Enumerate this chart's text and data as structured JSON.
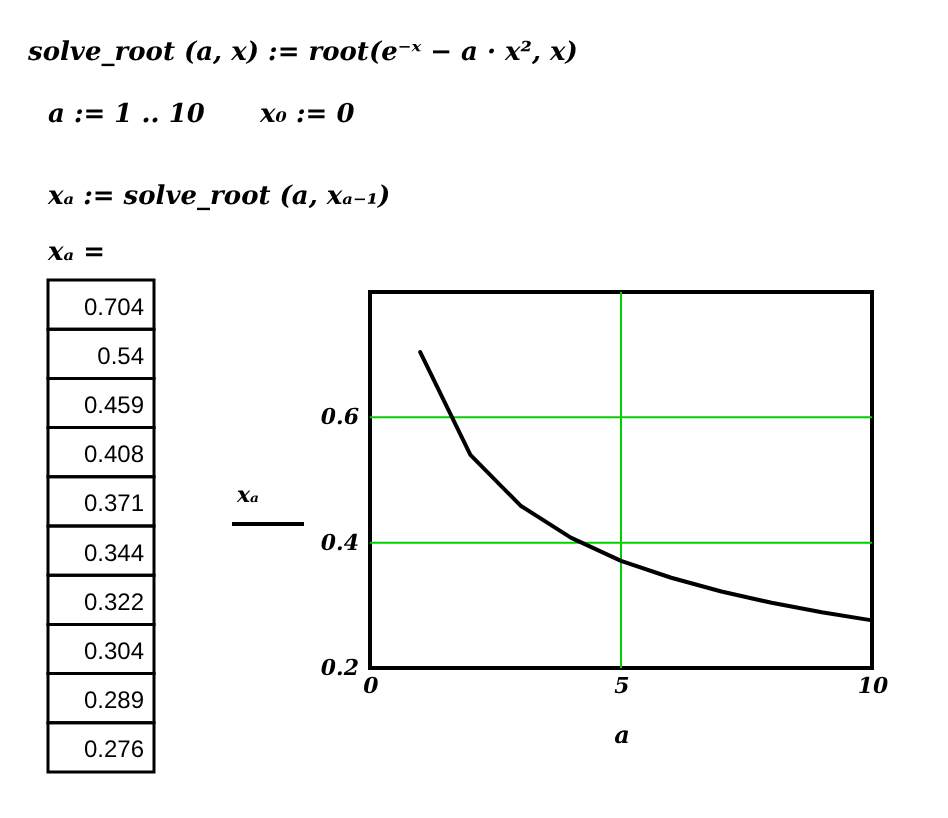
{
  "chart_data": {
    "type": "line",
    "annotations": [
      "solve_root (a, x) := root(e⁻ˣ − a · x², x)",
      "a := 1 .. 10",
      "x₀ := 0",
      "xₐ := solve_root (a, xₐ₋₁)",
      "xₐ =",
      "0.704",
      "0.54",
      "0.459",
      "0.408",
      "0.371",
      "0.344",
      "0.322",
      "0.304",
      "0.289",
      "0.276"
    ],
    "xlabel": "a",
    "x": [
      1,
      2,
      3,
      4,
      5,
      6,
      7,
      8,
      9,
      10
    ],
    "series": [
      {
        "name": "xₐ",
        "color": "#000000",
        "values": [
          0.704,
          0.54,
          0.459,
          0.408,
          0.371,
          0.344,
          0.322,
          0.304,
          0.289,
          0.276
        ]
      }
    ],
    "xlim": [
      0,
      10
    ],
    "xticks": [
      0,
      5,
      10
    ],
    "ylim": [
      0.2,
      0.8
    ],
    "yticks": [
      0.2,
      0.4,
      0.6
    ],
    "grid": true,
    "legend": "left",
    "line_style": "solid"
  }
}
